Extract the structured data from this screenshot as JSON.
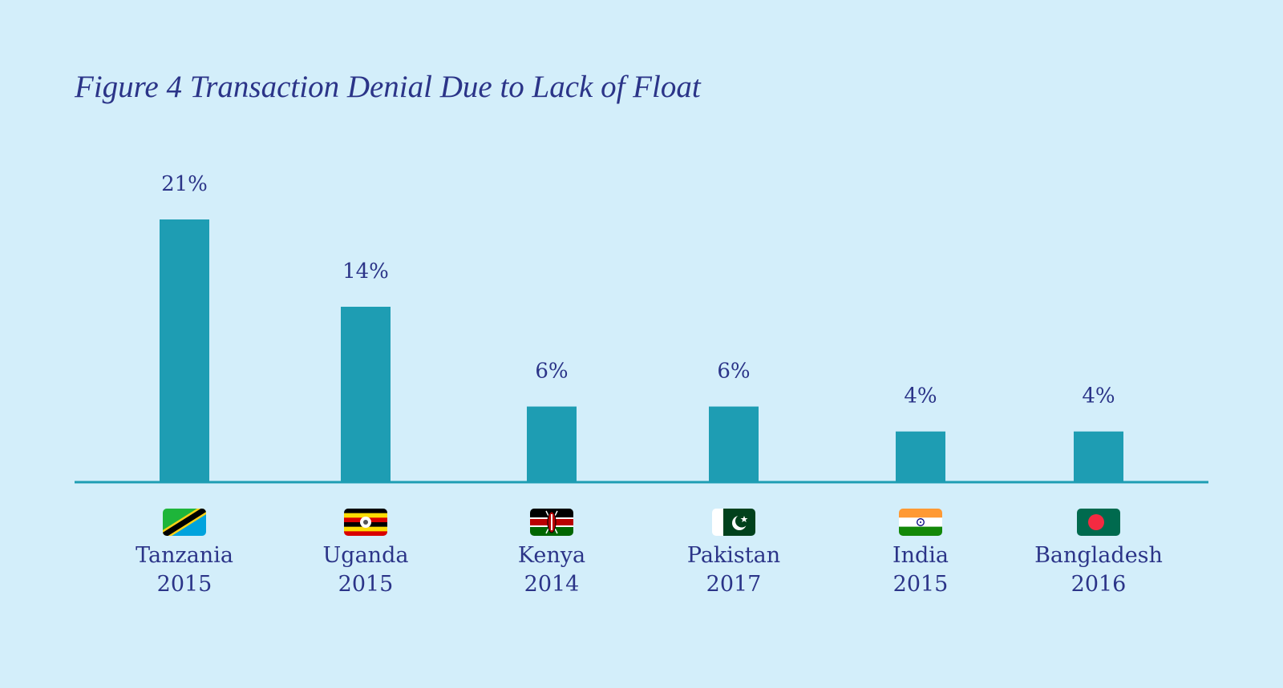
{
  "chart_data": {
    "type": "bar",
    "title": "Figure 4 Transaction Denial Due to Lack of Float",
    "xlabel": "",
    "ylabel": "",
    "ylim": [
      0,
      21
    ],
    "grid": false,
    "legend": "none",
    "unit": "%",
    "categories": [
      {
        "country": "Tanzania",
        "year": "2015",
        "flag": "tanzania-flag-icon"
      },
      {
        "country": "Uganda",
        "year": "2015",
        "flag": "uganda-flag-icon"
      },
      {
        "country": "Kenya",
        "year": "2014",
        "flag": "kenya-flag-icon"
      },
      {
        "country": "Pakistan",
        "year": "2017",
        "flag": "pakistan-flag-icon"
      },
      {
        "country": "India",
        "year": "2015",
        "flag": "india-flag-icon"
      },
      {
        "country": "Bangladesh",
        "year": "2016",
        "flag": "bangladesh-flag-icon"
      }
    ],
    "values": [
      21,
      14,
      6,
      6,
      4,
      4
    ],
    "value_labels": [
      "21%",
      "14%",
      "6%",
      "6%",
      "4%",
      "4%"
    ]
  },
  "colors": {
    "background": "#d3eefa",
    "bar": "#1e9db3",
    "axis": "#1e9db3",
    "text": "#2b3488"
  }
}
